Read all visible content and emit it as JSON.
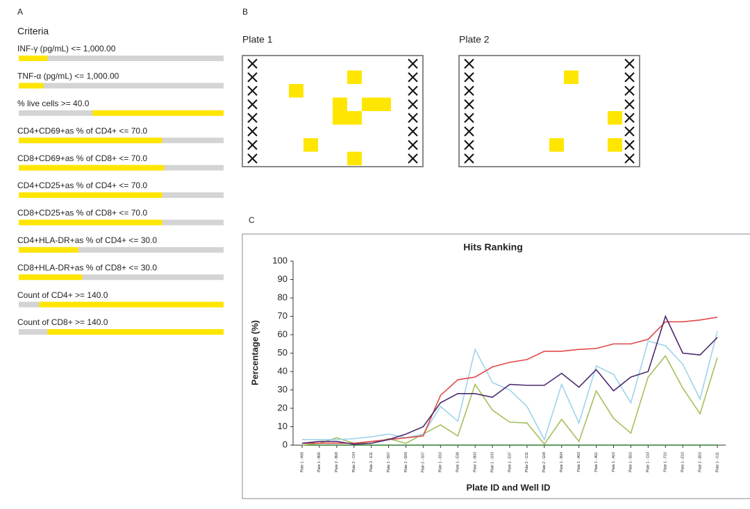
{
  "panel_a": {
    "label": "A",
    "title": "Criteria",
    "criteria": [
      {
        "label": "INF-γ (pg/mL) <= 1,000.00",
        "fill": [
          0,
          14
        ]
      },
      {
        "label": "TNF-α (pg/mL) <= 1,000.00",
        "fill": [
          0,
          12
        ]
      },
      {
        "label": "% live cells >= 40.0",
        "fill": [
          36,
          100
        ]
      },
      {
        "label": "CD4+CD69+as % of CD4+ <= 70.0",
        "fill": [
          0,
          70
        ]
      },
      {
        "label": "CD8+CD69+as % of CD8+ <= 70.0",
        "fill": [
          0,
          71
        ]
      },
      {
        "label": "CD4+CD25+as % of CD4+ <= 70.0",
        "fill": [
          0,
          70
        ]
      },
      {
        "label": "CD8+CD25+as % of CD8+ <= 70.0",
        "fill": [
          0,
          70
        ]
      },
      {
        "label": "CD4+HLA-DR+as % of CD4+ <= 30.0",
        "fill": [
          0,
          29
        ]
      },
      {
        "label": "CD8+HLA-DR+as % of CD8+ <= 30.0",
        "fill": [
          0,
          31
        ]
      },
      {
        "label": "Count of CD4+ >= 140.0",
        "fill": [
          10,
          100
        ]
      },
      {
        "label": "Count of CD8+ >= 140.0",
        "fill": [
          14,
          100
        ]
      }
    ]
  },
  "panel_b": {
    "label": "B",
    "rows": 8,
    "cols": 12,
    "excluded_cols": [
      1,
      12
    ],
    "plates": [
      {
        "title": "Plate 1",
        "hits": [
          [
            2,
            8
          ],
          [
            3,
            4
          ],
          [
            4,
            7
          ],
          [
            4,
            9
          ],
          [
            4,
            10
          ],
          [
            5,
            7
          ],
          [
            5,
            8
          ],
          [
            7,
            5
          ],
          [
            8,
            8
          ]
        ]
      },
      {
        "title": "Plate 2",
        "hits": [
          [
            2,
            8
          ],
          [
            5,
            11
          ],
          [
            7,
            7
          ],
          [
            7,
            11
          ]
        ]
      }
    ]
  },
  "panel_c": {
    "label": "C"
  },
  "chart_data": {
    "type": "line",
    "title": "Hits Ranking",
    "x_label": "Plate ID and Well ID",
    "y_label": "Percentage (%)",
    "categories": [
      "Plate 1 - H08",
      "Plate 1 - B06",
      "Plate 2 - B08",
      "Plate 2 - C04",
      "Plate 2 - E11",
      "Plate 1 - D07",
      "Plate 1 - D09",
      "Plate 2 - G07",
      "Plate 1 - D10",
      "Plate 1 - E08",
      "Plate 1 - B03",
      "Plate 1 - G03",
      "Plate 1 - E07",
      "Plate 2 - G11",
      "Plate 2 - G08",
      "Plate 1 - B04",
      "Plate 1 - A03",
      "Plate 1 - A01",
      "Plate 1 - A10",
      "Plate 1 - B10",
      "Plate 1 - C03",
      "Plate 1 - F10",
      "Plate 1 - E10",
      "Plate 2 - B10",
      "Plate 1 - G11"
    ],
    "ylim": [
      0,
      100
    ],
    "yticks": [
      0,
      10,
      20,
      30,
      40,
      50,
      60,
      70,
      80,
      90,
      100
    ],
    "series": [
      {
        "color": "#2e7d32",
        "values": [
          0,
          0,
          0,
          0,
          0,
          0,
          0,
          0,
          0,
          0,
          0,
          0,
          0,
          0,
          0,
          0,
          0,
          0,
          0,
          0,
          0,
          0,
          0,
          0,
          0
        ]
      },
      {
        "color": "#a4bf5a",
        "values": [
          0,
          1,
          4,
          1,
          1,
          3.5,
          1,
          6,
          11,
          5,
          33,
          19,
          12.5,
          12,
          0.5,
          14,
          2,
          29.5,
          14.5,
          6.5,
          37,
          48.5,
          31,
          17,
          47.5
        ]
      },
      {
        "color": "#9fd3ea",
        "values": [
          3,
          3,
          3,
          3.5,
          4.5,
          6,
          4,
          6,
          21,
          13,
          52,
          34,
          30,
          21,
          3,
          33,
          12,
          43,
          38.5,
          23,
          56.5,
          54,
          44,
          25,
          62
        ]
      },
      {
        "color": "#e04848",
        "values": [
          1,
          1,
          1,
          1,
          2,
          3,
          4,
          5,
          27,
          35.5,
          37,
          42.5,
          45,
          46.5,
          51,
          51,
          52,
          52.5,
          55,
          55,
          57.5,
          67,
          67,
          68,
          69.5
        ]
      },
      {
        "color": "#4b2a6e",
        "values": [
          1,
          2,
          2,
          0.5,
          1,
          3,
          6,
          10,
          23,
          28,
          28,
          26,
          33,
          32.5,
          32.5,
          39,
          31.5,
          41,
          29.5,
          37,
          40,
          70,
          50,
          49,
          58.5
        ]
      }
    ]
  }
}
